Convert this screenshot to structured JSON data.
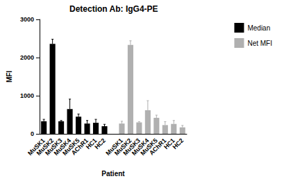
{
  "chart_data": {
    "type": "bar",
    "title": "Detection Ab: IgG4-PE",
    "x_label": "Patient",
    "y_label": "MFI",
    "categories": [
      "MuSK1",
      "MuSK2",
      "MuSK3",
      "MuSK4",
      "MuSK5",
      "AChR1",
      "HC1",
      "HC2",
      null,
      "MuSK1",
      "MuSK2",
      "MuSK3",
      "MuSK4",
      "MuSK5",
      "AChR1",
      "HC1",
      "HC2"
    ],
    "series": [
      {
        "name": "Median",
        "color": "#000000",
        "values": [
          330,
          2360,
          330,
          650,
          450,
          270,
          290,
          200,
          null,
          null,
          null,
          null,
          null,
          null,
          null,
          null,
          null
        ],
        "errors": [
          50,
          120,
          20,
          260,
          70,
          80,
          90,
          50,
          null,
          null,
          null,
          null,
          null,
          null,
          null,
          null,
          null
        ]
      },
      {
        "name": "Net MFI",
        "color": "#b0b0b0",
        "values": [
          null,
          null,
          null,
          null,
          null,
          null,
          null,
          null,
          null,
          270,
          2330,
          300,
          620,
          420,
          230,
          260,
          170
        ],
        "errors": [
          null,
          null,
          null,
          null,
          null,
          null,
          null,
          null,
          null,
          60,
          110,
          20,
          250,
          70,
          90,
          90,
          50
        ]
      }
    ],
    "ylim": [
      0,
      3000
    ],
    "yticks": [
      0,
      1000,
      2000,
      3000
    ],
    "grid": false,
    "legend": "top-right"
  }
}
